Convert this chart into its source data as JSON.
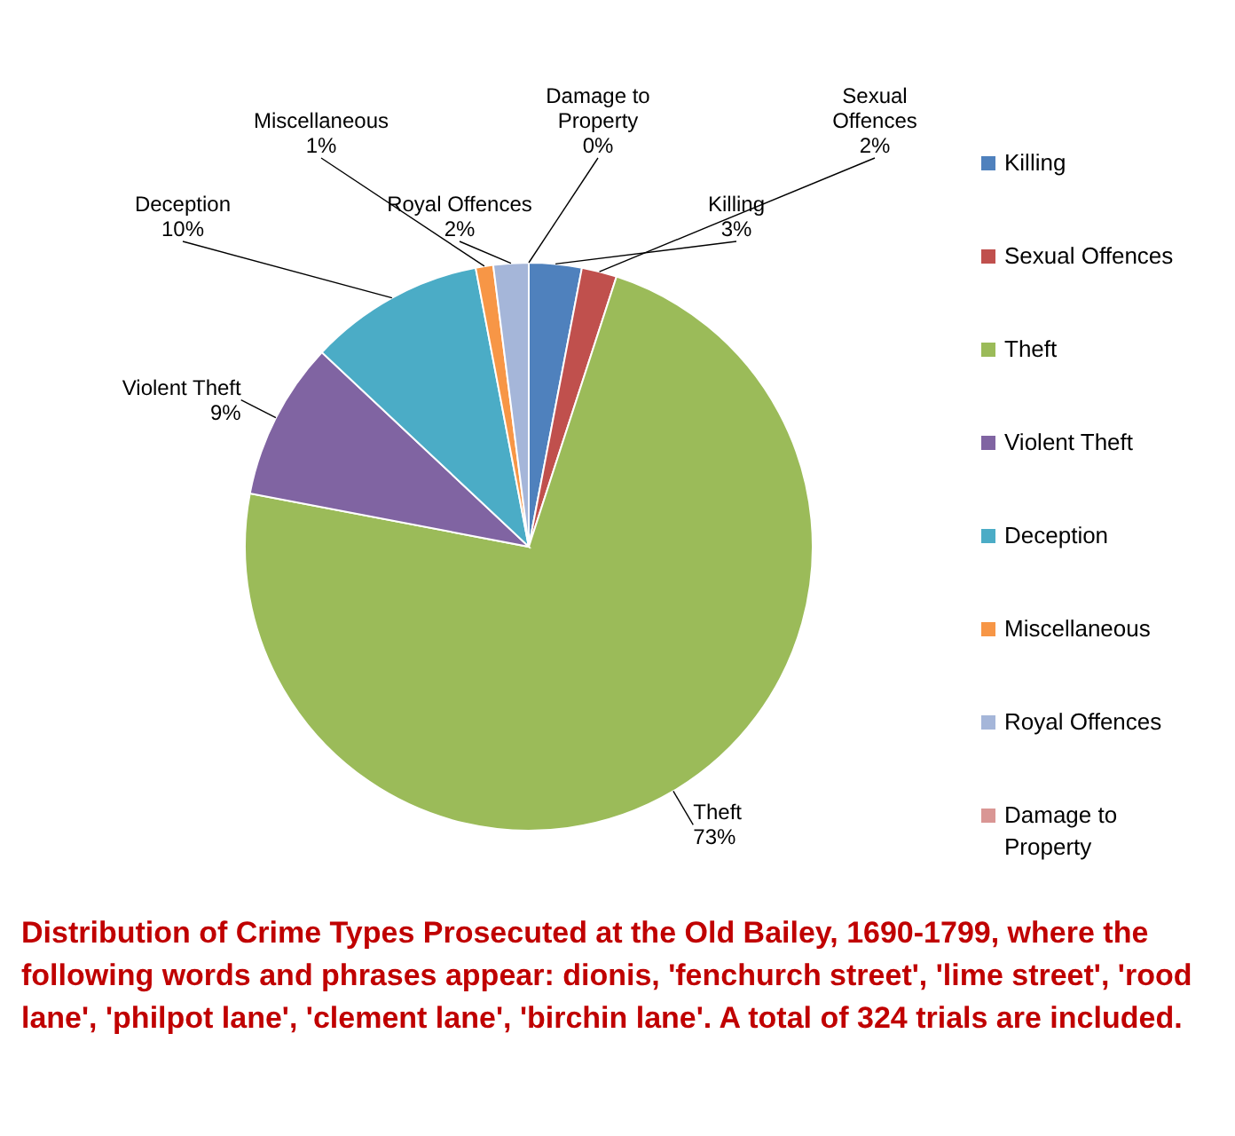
{
  "chart_data": {
    "type": "pie",
    "title": "Distribution of Crime Types Prosecuted at the Old Bailey, 1690-1799, where the following words and phrases  appear:  dionis, 'fenchurch street', 'lime street', 'rood lane', 'philpot lane', 'clement lane', 'birchin lane'.  A total of 324 trials are included.",
    "categories": [
      "Killing",
      "Sexual Offences",
      "Theft",
      "Violent Theft",
      "Deception",
      "Miscellaneous",
      "Royal Offences",
      "Damage to Property"
    ],
    "values": [
      3,
      2,
      73,
      9,
      10,
      1,
      2,
      0
    ],
    "colors": [
      "#4f81bd",
      "#c0504d",
      "#9bbb59",
      "#8064a2",
      "#4bacc6",
      "#f79646",
      "#a5b6d9",
      "#d99694"
    ],
    "value_labels": [
      "3%",
      "2%",
      "73%",
      "9%",
      "10%",
      "1%",
      "2%",
      "0%"
    ],
    "legend": "right"
  }
}
